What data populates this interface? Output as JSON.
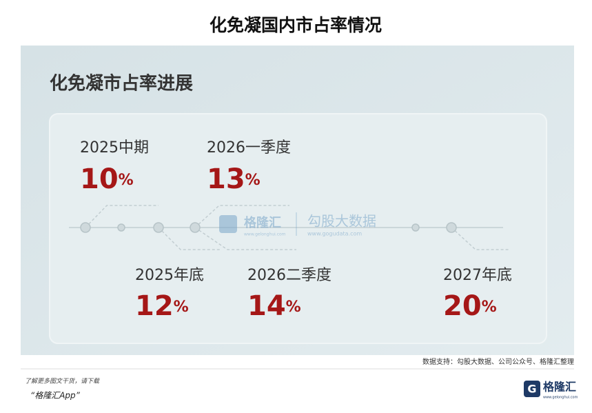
{
  "header": {
    "title": "化免凝国内市占率情况"
  },
  "card": {
    "title": "化免凝市占率进展",
    "milestones": [
      {
        "period": "2025中期",
        "value": "10",
        "unit": "%"
      },
      {
        "period": "2026一季度",
        "value": "13",
        "unit": "%"
      },
      {
        "period": "2025年底",
        "value": "12",
        "unit": "%"
      },
      {
        "period": "2026二季度",
        "value": "14",
        "unit": "%"
      },
      {
        "period": "2027年底",
        "value": "20",
        "unit": "%"
      }
    ]
  },
  "watermark": {
    "brand": "格隆汇",
    "brand_url": "www.gelonghui.com",
    "partner": "勾股大数据",
    "partner_url": "www.gogudata.com"
  },
  "source": "数据支持：勾股大数据、公司公众号、格隆汇整理",
  "footer": {
    "promo": "了解更多图文干货，请下载",
    "app": "“格隆汇App”",
    "logo": "格隆汇",
    "logo_url": "www.gelonghui.com"
  }
}
